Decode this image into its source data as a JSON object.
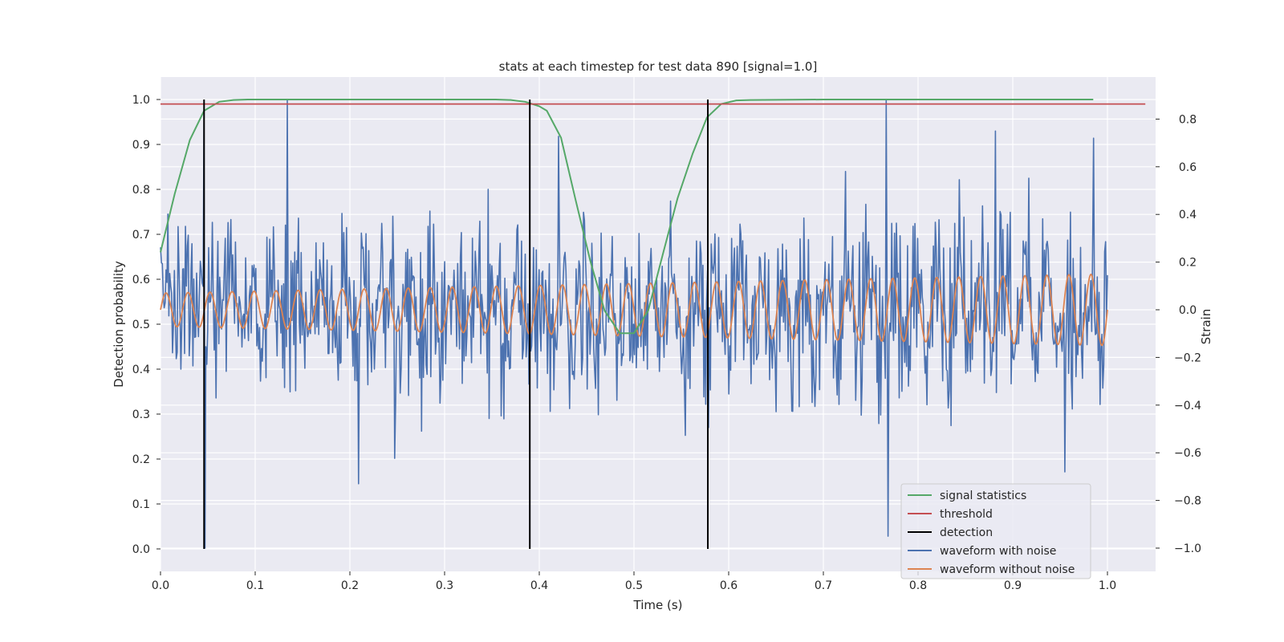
{
  "chart_data": {
    "type": "line",
    "title": "stats at each timestep for test data 890 [signal=1.0]",
    "xlabel": "Time (s)",
    "ylabel": "Detection probability",
    "ylabel_right": "Strain",
    "xlim": [
      0.0,
      1.05
    ],
    "ylim": [
      -0.05,
      1.05
    ],
    "ylim_right": [
      -1.09,
      0.97
    ],
    "x_ticks": [
      "0.0",
      "0.1",
      "0.2",
      "0.3",
      "0.4",
      "0.5",
      "0.6",
      "0.7",
      "0.8",
      "0.9",
      "1.0"
    ],
    "y_ticks": [
      "0.0",
      "0.1",
      "0.2",
      "0.3",
      "0.4",
      "0.5",
      "0.6",
      "0.7",
      "0.8",
      "0.9",
      "1.0"
    ],
    "y_ticks_right": [
      "−1.0",
      "−0.8",
      "−0.6",
      "−0.4",
      "−0.2",
      "0.0",
      "0.2",
      "0.4",
      "0.6",
      "0.8"
    ],
    "grid": true,
    "legend_position": "lower-right",
    "colors": {
      "signal_statistics": "#55a868",
      "threshold": "#c44e52",
      "detection": "#000000",
      "waveform_with_noise": "#4c72b0",
      "waveform_without_noise": "#dd8452",
      "axes_background": "#eaeaf2",
      "grid": "#ffffff"
    },
    "legend": [
      {
        "label": "signal statistics",
        "color": "#55a868"
      },
      {
        "label": "threshold",
        "color": "#c44e52"
      },
      {
        "label": "detection",
        "color": "#000000"
      },
      {
        "label": "waveform with noise",
        "color": "#4c72b0"
      },
      {
        "label": "waveform without noise",
        "color": "#dd8452"
      }
    ],
    "signal_statistics": {
      "x": [
        0.0,
        0.015,
        0.031,
        0.046,
        0.062,
        0.077,
        0.092,
        0.108,
        0.2,
        0.3,
        0.354,
        0.37,
        0.385,
        0.4,
        0.408,
        0.423,
        0.438,
        0.454,
        0.469,
        0.485,
        0.5,
        0.515,
        0.531,
        0.546,
        0.562,
        0.577,
        0.592,
        0.608,
        0.623,
        0.7,
        0.8,
        0.9,
        0.985
      ],
      "y": [
        0.66,
        0.79,
        0.91,
        0.975,
        0.995,
        0.999,
        1.0,
        1.0,
        1.0,
        1.0,
        1.0,
        0.999,
        0.995,
        0.985,
        0.975,
        0.915,
        0.78,
        0.64,
        0.53,
        0.48,
        0.48,
        0.53,
        0.66,
        0.78,
        0.88,
        0.96,
        0.99,
        0.998,
        0.999,
        1.0,
        1.0,
        1.0,
        1.0
      ]
    },
    "threshold": {
      "value": 0.99,
      "x": [
        0.0,
        1.04
      ]
    },
    "detections": [
      0.046,
      0.39,
      0.578
    ],
    "waveform_without_noise": {
      "x_range": [
        0.0,
        1.0
      ],
      "cycles": 43,
      "amplitude_start": 0.07,
      "amplitude_end": 0.15
    },
    "waveform_with_noise": {
      "x_range": [
        0.0,
        1.0
      ],
      "samples": 1024,
      "noise_std": 0.18,
      "min": -1.0,
      "max": 0.88
    }
  }
}
